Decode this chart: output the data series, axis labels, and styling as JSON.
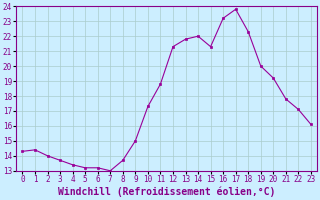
{
  "x": [
    0,
    1,
    2,
    3,
    4,
    5,
    6,
    7,
    8,
    9,
    10,
    11,
    12,
    13,
    14,
    15,
    16,
    17,
    18,
    19,
    20,
    21,
    22,
    23
  ],
  "y": [
    14.3,
    14.4,
    14.0,
    13.7,
    13.4,
    13.2,
    13.2,
    13.0,
    13.7,
    15.0,
    17.3,
    18.8,
    21.3,
    21.8,
    22.0,
    21.3,
    23.2,
    23.8,
    22.3,
    20.0,
    19.2,
    17.8,
    17.1,
    16.1
  ],
  "line_color": "#990099",
  "marker": "s",
  "marker_size": 2.0,
  "bg_color": "#cceeff",
  "grid_color": "#aacccc",
  "xlabel": "Windchill (Refroidissement éolien,°C)",
  "ylim": [
    13,
    24
  ],
  "xlim": [
    -0.5,
    23.5
  ],
  "yticks": [
    13,
    14,
    15,
    16,
    17,
    18,
    19,
    20,
    21,
    22,
    23,
    24
  ],
  "xticks": [
    0,
    1,
    2,
    3,
    4,
    5,
    6,
    7,
    8,
    9,
    10,
    11,
    12,
    13,
    14,
    15,
    16,
    17,
    18,
    19,
    20,
    21,
    22,
    23
  ],
  "tick_label_color": "#880088",
  "tick_fontsize": 5.5,
  "xlabel_fontsize": 7.0
}
